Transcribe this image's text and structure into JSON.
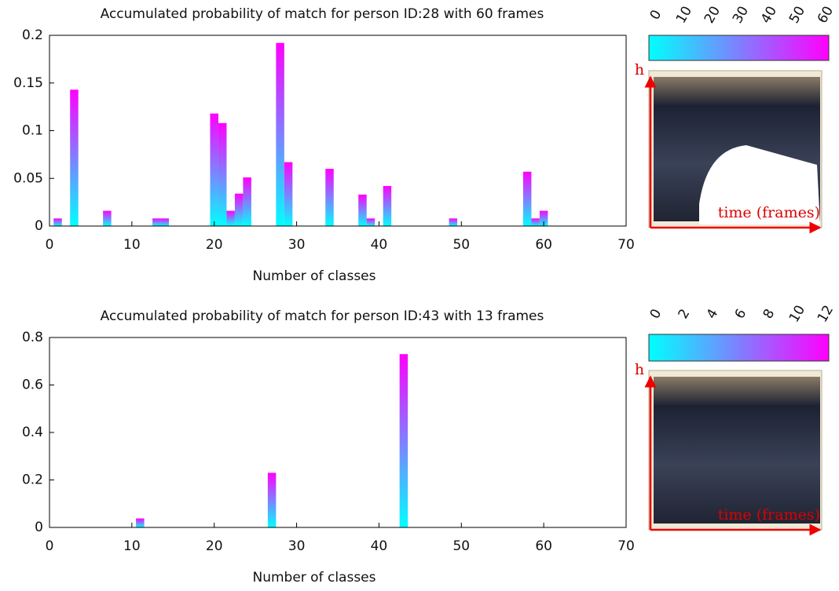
{
  "chart_data": [
    {
      "type": "bar",
      "title": "Accumulated probability of match for person ID:28 with 60 frames",
      "xlabel": "Number of classes",
      "x": [
        1,
        3,
        7,
        13,
        14,
        20,
        21,
        22,
        23,
        24,
        28,
        29,
        34,
        38,
        39,
        41,
        49,
        58,
        59,
        60
      ],
      "values": [
        0.008,
        0.143,
        0.016,
        0.008,
        0.008,
        0.118,
        0.108,
        0.016,
        0.034,
        0.051,
        0.192,
        0.067,
        0.06,
        0.033,
        0.008,
        0.042,
        0.008,
        0.057,
        0.008,
        0.016
      ],
      "xlim": [
        0,
        70
      ],
      "xticks": [
        0,
        10,
        20,
        30,
        40,
        50,
        60,
        70
      ],
      "ylim": [
        0,
        0.2
      ],
      "yticks": [
        0,
        0.05,
        0.1,
        0.15,
        0.2
      ],
      "colors": [
        "#00ffff",
        "#ff00ff"
      ],
      "colorbar_ticks": [
        0,
        10,
        20,
        30,
        40,
        50,
        60
      ],
      "image_ylabel": "h",
      "image_xlabel": "time (frames)"
    },
    {
      "type": "bar",
      "title": "Accumulated probability of match for person ID:43 with 13 frames",
      "xlabel": "Number of classes",
      "x": [
        11,
        27,
        43
      ],
      "values": [
        0.038,
        0.23,
        0.73
      ],
      "xlim": [
        0,
        70
      ],
      "xticks": [
        0,
        10,
        20,
        30,
        40,
        50,
        60,
        70
      ],
      "ylim": [
        0,
        0.8
      ],
      "yticks": [
        0,
        0.2,
        0.4,
        0.6,
        0.8
      ],
      "colors": [
        "#00ffff",
        "#ff00ff"
      ],
      "colorbar_ticks": [
        0,
        2,
        4,
        6,
        8,
        10,
        12
      ],
      "image_ylabel": "h",
      "image_xlabel": "time (frames)"
    }
  ]
}
